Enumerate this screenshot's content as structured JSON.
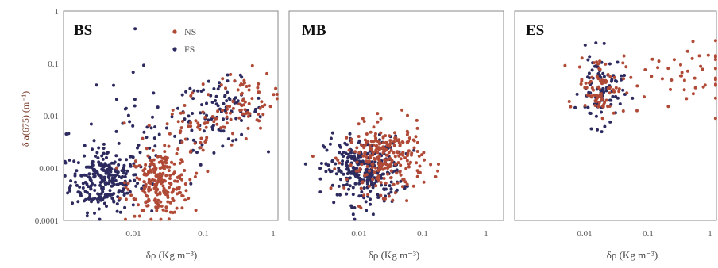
{
  "colors": {
    "NS": "#b04a36",
    "FS": "#2c2a5e"
  },
  "chart_data": [
    {
      "type": "scatter",
      "title": "BS",
      "xlabel": "δρ (Kg m⁻³)",
      "ylabel": "δ a(675) (m⁻¹)",
      "xscale": "log",
      "yscale": "log",
      "xlim": [
        0.001,
        1.3
      ],
      "ylim": [
        0.0001,
        1
      ],
      "xticks": [
        "0.01",
        "0.1",
        "1"
      ],
      "yticks": [
        "1",
        "0.1",
        "0.01",
        "0.001",
        "0.0001"
      ],
      "legend": {
        "placement": "top-center",
        "entries": [
          "NS",
          "FS"
        ]
      },
      "series": [
        {
          "name": "FS",
          "clusters": [
            {
              "cx": 0.004,
              "cy": 0.0006,
              "sx": 0.25,
              "sy": 0.3,
              "n": 260
            },
            {
              "cx": 0.2,
              "cy": 0.012,
              "sx": 0.3,
              "sy": 0.3,
              "n": 90
            },
            {
              "cx": 0.02,
              "cy": 0.005,
              "sx": 0.6,
              "sy": 0.6,
              "n": 60
            }
          ]
        },
        {
          "name": "NS",
          "clusters": [
            {
              "cx": 0.025,
              "cy": 0.0005,
              "sx": 0.22,
              "sy": 0.3,
              "n": 230
            },
            {
              "cx": 0.08,
              "cy": 0.006,
              "sx": 0.35,
              "sy": 0.35,
              "n": 60
            },
            {
              "cx": 0.4,
              "cy": 0.02,
              "sx": 0.22,
              "sy": 0.28,
              "n": 70
            }
          ]
        }
      ]
    },
    {
      "type": "scatter",
      "title": "MB",
      "xlabel": "δρ (Kg m⁻³)",
      "xscale": "log",
      "yscale": "log",
      "xlim": [
        0.001,
        1.3
      ],
      "ylim": [
        0.0001,
        1
      ],
      "xticks": [
        "0.01",
        "0.1",
        "1"
      ],
      "series": [
        {
          "name": "FS",
          "clusters": [
            {
              "cx": 0.012,
              "cy": 0.0009,
              "sx": 0.28,
              "sy": 0.32,
              "n": 280
            }
          ]
        },
        {
          "name": "NS",
          "clusters": [
            {
              "cx": 0.025,
              "cy": 0.0015,
              "sx": 0.28,
              "sy": 0.32,
              "n": 260
            }
          ]
        }
      ]
    },
    {
      "type": "scatter",
      "title": "ES",
      "xlabel": "δρ (Kg m⁻³)",
      "xscale": "log",
      "yscale": "log",
      "xlim": [
        0.001,
        1.1
      ],
      "ylim": [
        0.0001,
        1
      ],
      "xticks": [
        "0.01",
        "0.1",
        "1"
      ],
      "series": [
        {
          "name": "FS",
          "clusters": [
            {
              "cx": 0.02,
              "cy": 0.03,
              "sx": 0.16,
              "sy": 0.35,
              "n": 90
            }
          ]
        },
        {
          "name": "NS",
          "clusters": [
            {
              "cx": 0.02,
              "cy": 0.04,
              "sx": 0.18,
              "sy": 0.28,
              "n": 80
            },
            {
              "cx": 0.2,
              "cy": 0.05,
              "sx": 0.55,
              "sy": 0.35,
              "n": 50
            }
          ]
        }
      ]
    }
  ]
}
